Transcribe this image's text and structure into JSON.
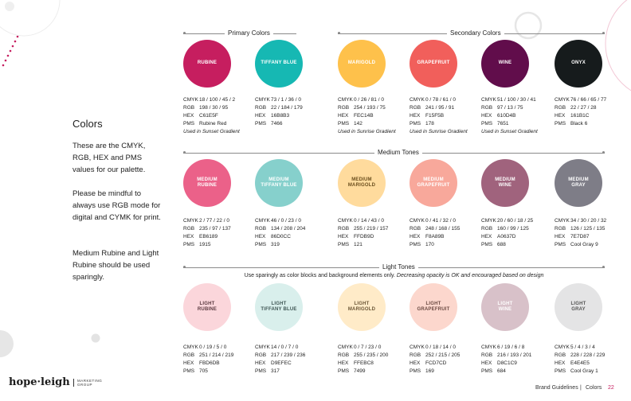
{
  "sidebar": {
    "title": "Colors",
    "p1": "These are the CMYK, RGB, HEX and PMS values for our palette.",
    "p2": "Please be mindful to always use RGB mode for digital and CYMK for print.",
    "p3": "Medium Rubine and Light Rubine should be used sparingly."
  },
  "sections": {
    "primary": "Primary Colors",
    "secondary": "Secondary Colors",
    "medium": "Medium Tones",
    "light": "Light Tones",
    "light_note_a": "Use sparingly as color blocks and background elements only. ",
    "light_note_b": "Decreasing opacity is OK and encouraged based on design"
  },
  "keys": [
    "CMYK",
    "RGB",
    "HEX",
    "PMS"
  ],
  "rows": [
    {
      "id": "primary-secondary",
      "swatches": [
        {
          "name": "RUBINE",
          "color": "#C61E5F",
          "text_color": "#ffffff",
          "cmyk": "18 / 100 / 45 / 2",
          "rgb": "198 / 30 / 95",
          "hex": "C61E5F",
          "pms": "Rubine Red",
          "note": "Used in Sunset Gradient"
        },
        {
          "name": "TIFFANY BLUE",
          "color": "#16B8B3",
          "text_color": "#ffffff",
          "cmyk": "73 / 1 / 36 / 0",
          "rgb": "22 / 184 / 179",
          "hex": "16B8B3",
          "pms": "7466",
          "note": ""
        },
        {
          "name": "MARIGOLD",
          "color": "#FEC14B",
          "text_color": "#ffffff",
          "cmyk": "0 / 26 / 81 / 0",
          "rgb": "254 / 193 / 75",
          "hex": "FEC14B",
          "pms": "142",
          "note": "Used in Sunrise Gradient"
        },
        {
          "name": "GRAPEFRUIT",
          "color": "#F15F5B",
          "text_color": "#ffffff",
          "cmyk": "0 / 78 / 61 / 0",
          "rgb": "241 / 95 / 91",
          "hex": "F15F5B",
          "pms": "178",
          "note": "Used in Sunrise Gradient"
        },
        {
          "name": "WINE",
          "color": "#610D4B",
          "text_color": "#ffffff",
          "cmyk": "51 / 100 / 30 / 41",
          "rgb": "97 / 13 / 75",
          "hex": "610D4B",
          "pms": "7651",
          "note": "Used in Sunset Gradient"
        },
        {
          "name": "ONYX",
          "color": "#161B1C",
          "text_color": "#ffffff",
          "cmyk": "76 / 66 / 65 / 77",
          "rgb": "22 / 27 / 28",
          "hex": "161B1C",
          "pms": "Black 6",
          "note": ""
        }
      ]
    },
    {
      "id": "medium",
      "swatches": [
        {
          "name": "MEDIUM\nRUBINE",
          "color": "#EB6189",
          "text_color": "#ffffff",
          "cmyk": "2 / 77 / 22 / 0",
          "rgb": "235 / 97 / 137",
          "hex": "EB6189",
          "pms": "1915",
          "note": ""
        },
        {
          "name": "MEDIUM\nTIFFANY BLUE",
          "color": "#86D0CC",
          "text_color": "#ffffff",
          "cmyk": "46 / 0 / 23 / 0",
          "rgb": "134 / 208 / 204",
          "hex": "86D0CC",
          "pms": "319",
          "note": ""
        },
        {
          "name": "MEDIUM\nMARIGOLD",
          "color": "#FFDB9D",
          "text_color": "#6b4f1e",
          "cmyk": "0 / 14 / 43 / 0",
          "rgb": "255 / 219 / 157",
          "hex": "FFDB9D",
          "pms": "121",
          "note": ""
        },
        {
          "name": "MEDIUM\nGRAPEFRUIT",
          "color": "#F8A89B",
          "text_color": "#ffffff",
          "cmyk": "0 / 41 / 32 / 0",
          "rgb": "248 / 168 / 155",
          "hex": "F8A89B",
          "pms": "170",
          "note": ""
        },
        {
          "name": "MEDIUM\nWINE",
          "color": "#A0637D",
          "text_color": "#ffffff",
          "cmyk": "20 / 60 / 18 / 25",
          "rgb": "160 / 99 / 125",
          "hex": "A0637D",
          "pms": "688",
          "note": ""
        },
        {
          "name": "MEDIUM\nGRAY",
          "color": "#7E7D87",
          "text_color": "#ffffff",
          "cmyk": "34 / 30 / 20 / 32",
          "rgb": "126 / 125 / 135",
          "hex": "7E7D87",
          "pms": "Cool Gray 9",
          "note": ""
        }
      ]
    },
    {
      "id": "light",
      "swatches": [
        {
          "name": "LIGHT\nRUBINE",
          "color": "#FBD6DB",
          "text_color": "#5a3a40",
          "cmyk": "0 / 19 / 5 / 0",
          "rgb": "251 / 214 / 219",
          "hex": "FBD6DB",
          "pms": "705",
          "note": ""
        },
        {
          "name": "LIGHT\nTIFFANY BLUE",
          "color": "#D9EFEC",
          "text_color": "#3f5654",
          "cmyk": "14 / 0 / 7 / 0",
          "rgb": "217 / 239 / 236",
          "hex": "D9EFEC",
          "pms": "317",
          "note": ""
        },
        {
          "name": "LIGHT\nMARIGOLD",
          "color": "#FFEBC8",
          "text_color": "#6b5636",
          "cmyk": "0 / 7 / 23 / 0",
          "rgb": "255 / 235 / 200",
          "hex": "FFEBC8",
          "pms": "7499",
          "note": ""
        },
        {
          "name": "LIGHT\nGRAPEFRUIT",
          "color": "#FCD7CD",
          "text_color": "#6b4a42",
          "cmyk": "0 / 18 / 14 / 0",
          "rgb": "252 / 215 / 205",
          "hex": "FCD7CD",
          "pms": "169",
          "note": ""
        },
        {
          "name": "LIGHT\nWINE",
          "color": "#D8C1C9",
          "text_color": "#ffffff",
          "cmyk": "6 / 19 / 6 / 8",
          "rgb": "216 / 193 / 201",
          "hex": "D8C1C9",
          "pms": "684",
          "note": ""
        },
        {
          "name": "LIGHT\nGRAY",
          "color": "#E4E4E5",
          "text_color": "#555555",
          "cmyk": "5 / 4 / 3 / 4",
          "rgb": "228 / 228 / 229",
          "hex": "E4E4E5",
          "pms": "Cool Gray 1",
          "note": ""
        }
      ]
    }
  ],
  "footer": {
    "brand": "hope·leigh",
    "brand_sub": "MARKETING\nGROUP",
    "guide": "Brand Guidelines",
    "sep": "|",
    "section": "Colors",
    "page": "22"
  },
  "colors": {
    "accent": "#C61E5F",
    "decor_gray": "#e6e6e6"
  }
}
